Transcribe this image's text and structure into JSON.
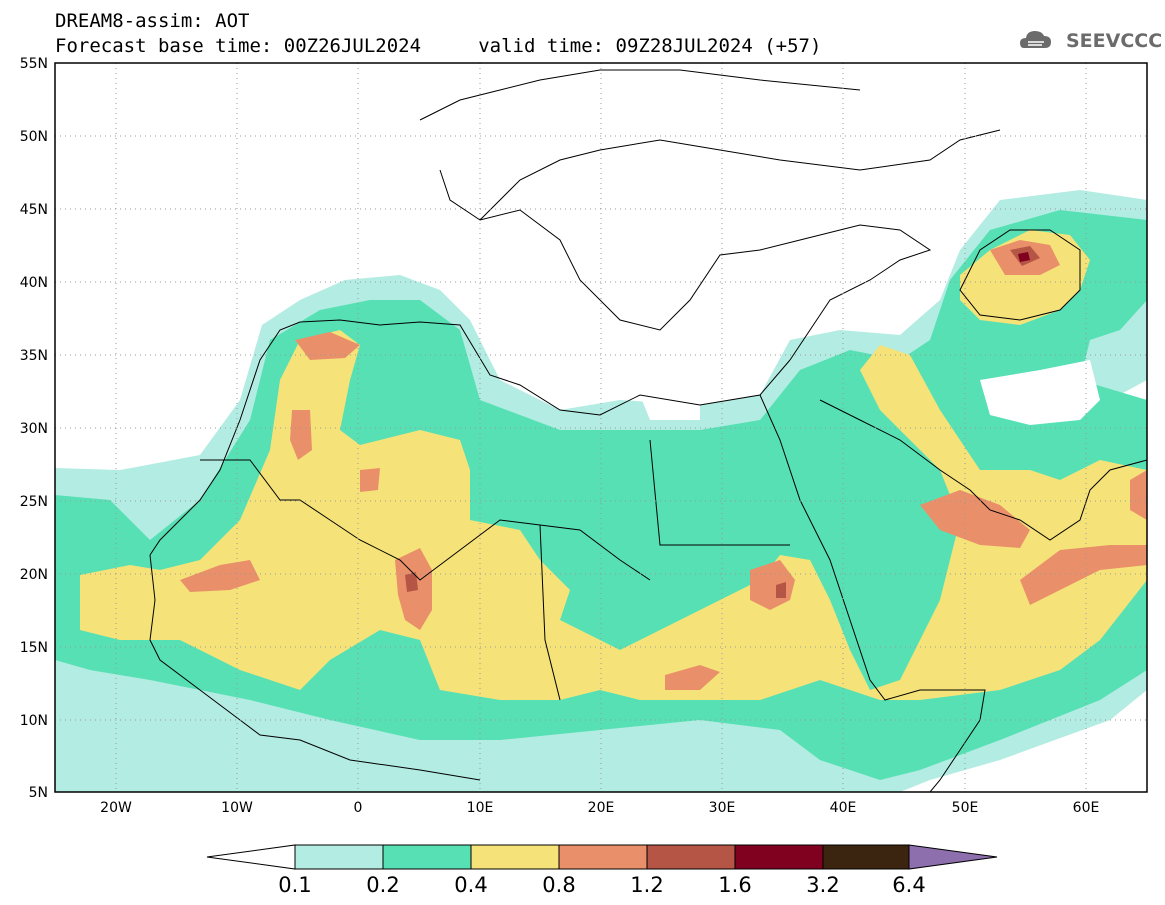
{
  "title": {
    "line1": "DREAM8-assim: AOT",
    "line2": "Forecast base time: 00Z26JUL2024     valid time: 09Z28JUL2024 (+57)"
  },
  "logo": {
    "text": "SEEVCCC",
    "color": "#6b6b6b",
    "icon": "cloud-icon"
  },
  "map": {
    "lat_labels": [
      "55N",
      "50N",
      "45N",
      "40N",
      "35N",
      "30N",
      "25N",
      "20N",
      "15N",
      "10N",
      "5N"
    ],
    "lon_labels": [
      "20W",
      "10W",
      "0",
      "10E",
      "20E",
      "30E",
      "40E",
      "50E",
      "60E"
    ],
    "lon_range": [
      -25,
      65
    ],
    "lat_range": [
      5,
      55
    ]
  },
  "colorbar": {
    "labels": [
      "0.1",
      "0.2",
      "0.4",
      "0.8",
      "1.2",
      "1.6",
      "3.2",
      "6.4"
    ],
    "colors": [
      "#ffffff",
      "#b3ece2",
      "#57e0b4",
      "#f5e37a",
      "#e9906a",
      "#b55545",
      "#800020",
      "#3b2410",
      "#8e6fae"
    ]
  }
}
